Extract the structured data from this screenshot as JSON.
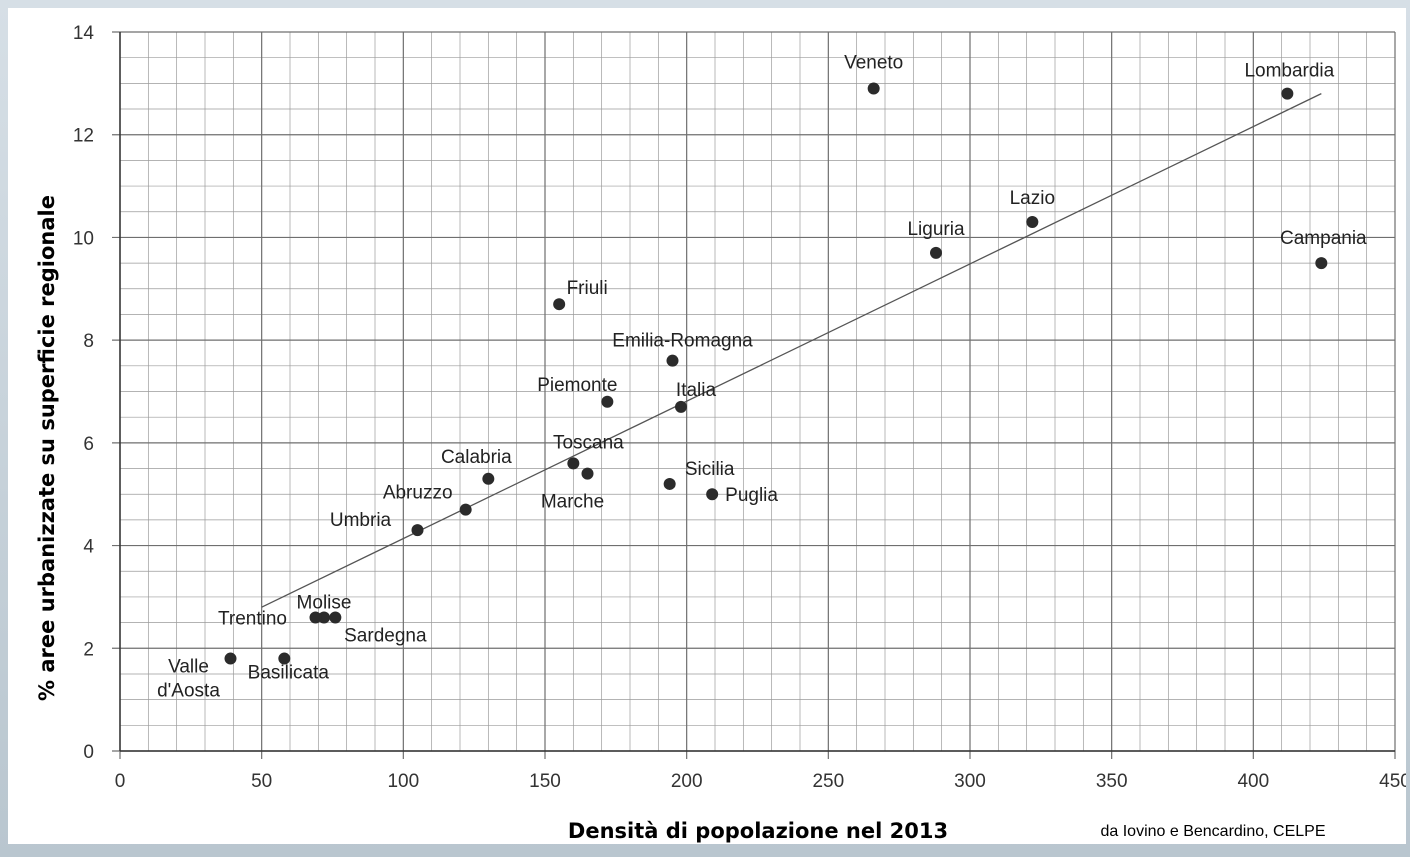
{
  "chart_data": {
    "type": "scatter",
    "title": "",
    "xlabel": "Densità di popolazione nel 2013",
    "ylabel": "% aree urbanizzate su superficie regionale",
    "source": "da Iovino e Bencardino, CELPE",
    "xlim": [
      0,
      450
    ],
    "ylim": [
      0,
      14
    ],
    "x_ticks": [
      "0",
      "50",
      "100",
      "150",
      "200",
      "250",
      "300",
      "350",
      "400",
      "450"
    ],
    "y_ticks": [
      "0",
      "2",
      "4",
      "6",
      "8",
      "10",
      "12",
      "14"
    ],
    "grid": true,
    "trendline": {
      "x": [
        50,
        424
      ],
      "y": [
        2.8,
        12.8
      ]
    },
    "points": [
      {
        "label": "Veneto",
        "x": 266,
        "y": 12.9
      },
      {
        "label": "Lombardia",
        "x": 412,
        "y": 12.8
      },
      {
        "label": "Lazio",
        "x": 322,
        "y": 10.3
      },
      {
        "label": "Liguria",
        "x": 288,
        "y": 9.7
      },
      {
        "label": "Campania",
        "x": 424,
        "y": 9.5
      },
      {
        "label": "Friuli",
        "x": 155,
        "y": 8.7
      },
      {
        "label": "Emilia-Romagna",
        "x": 195,
        "y": 7.6
      },
      {
        "label": "Piemonte",
        "x": 172,
        "y": 6.8
      },
      {
        "label": "Italia",
        "x": 198,
        "y": 6.7
      },
      {
        "label": "Toscana",
        "x": 160,
        "y": 5.6
      },
      {
        "label": "Marche",
        "x": 165,
        "y": 5.4
      },
      {
        "label": "Calabria",
        "x": 130,
        "y": 5.3
      },
      {
        "label": "Sicilia",
        "x": 194,
        "y": 5.2
      },
      {
        "label": "Puglia",
        "x": 209,
        "y": 5.0
      },
      {
        "label": "Abruzzo",
        "x": 122,
        "y": 4.7
      },
      {
        "label": "Umbria",
        "x": 105,
        "y": 4.3
      },
      {
        "label": "Molise",
        "x": 72,
        "y": 2.6
      },
      {
        "label": "Trentino",
        "x": 69,
        "y": 2.6
      },
      {
        "label": "Sardegna",
        "x": 76,
        "y": 2.6
      },
      {
        "label": "Valle d'Aosta",
        "label_lines": [
          "Valle",
          "d'Aosta"
        ],
        "x": 39,
        "y": 1.8
      },
      {
        "label": "Basilicata",
        "x": 58,
        "y": 1.8
      }
    ]
  }
}
